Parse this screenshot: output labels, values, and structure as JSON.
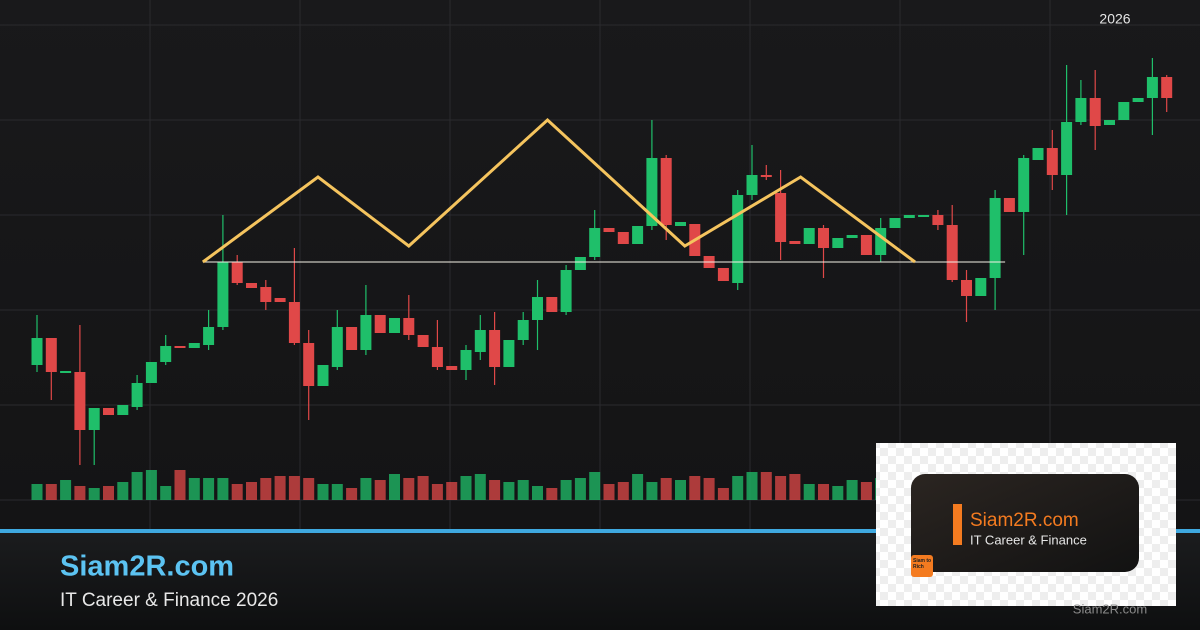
{
  "chart_data": {
    "type": "candlestick",
    "period": "2026",
    "open": [
      155,
      182,
      147,
      148,
      90,
      112,
      105,
      113,
      137,
      158,
      174,
      172,
      175,
      193,
      258,
      237,
      233,
      222,
      218,
      177,
      134,
      153,
      193,
      170,
      205,
      187,
      202,
      185,
      173,
      154,
      150,
      168,
      190,
      153,
      180,
      200,
      223,
      208,
      250,
      263,
      292,
      288,
      276,
      294,
      362,
      294,
      296,
      264,
      252,
      237,
      325,
      345,
      327,
      279,
      276,
      292,
      272,
      282,
      285,
      265,
      292,
      302,
      303,
      305,
      295,
      240,
      224,
      242,
      322,
      308,
      360,
      372,
      345,
      398,
      422,
      395,
      400,
      418,
      422,
      443
    ],
    "high": [
      205,
      182,
      149,
      195,
      112,
      112,
      115,
      145,
      158,
      185,
      174,
      177,
      210,
      305,
      265,
      237,
      240,
      222,
      272,
      190,
      155,
      210,
      193,
      235,
      205,
      202,
      225,
      185,
      200,
      154,
      175,
      205,
      208,
      180,
      208,
      240,
      223,
      255,
      263,
      310,
      292,
      288,
      294,
      400,
      365,
      298,
      296,
      264,
      252,
      330,
      375,
      355,
      350,
      279,
      292,
      295,
      282,
      285,
      285,
      302,
      302,
      305,
      305,
      310,
      315,
      250,
      242,
      330,
      322,
      365,
      372,
      390,
      455,
      440,
      450,
      400,
      418,
      422,
      462,
      445
    ],
    "low": [
      148,
      120,
      147,
      55,
      55,
      105,
      105,
      110,
      137,
      155,
      172,
      172,
      170,
      190,
      235,
      232,
      210,
      218,
      175,
      100,
      134,
      150,
      170,
      165,
      187,
      187,
      180,
      173,
      150,
      150,
      140,
      160,
      135,
      153,
      175,
      170,
      208,
      205,
      250,
      260,
      288,
      276,
      276,
      290,
      280,
      294,
      264,
      252,
      239,
      230,
      320,
      340,
      260,
      276,
      276,
      242,
      272,
      282,
      265,
      258,
      292,
      302,
      303,
      290,
      238,
      198,
      224,
      210,
      308,
      265,
      360,
      330,
      305,
      395,
      370,
      395,
      400,
      418,
      385,
      408
    ],
    "close": [
      182,
      148,
      149,
      90,
      112,
      105,
      115,
      137,
      158,
      174,
      172,
      177,
      193,
      258,
      237,
      232,
      218,
      218,
      177,
      134,
      155,
      193,
      170,
      205,
      187,
      202,
      185,
      173,
      153,
      150,
      170,
      190,
      153,
      180,
      200,
      223,
      208,
      250,
      263,
      292,
      288,
      276,
      294,
      362,
      295,
      298,
      264,
      252,
      239,
      325,
      345,
      343,
      278,
      276,
      292,
      272,
      282,
      285,
      265,
      292,
      302,
      305,
      305,
      295,
      240,
      224,
      242,
      322,
      308,
      362,
      372,
      345,
      398,
      422,
      394,
      400,
      418,
      422,
      443,
      422
    ],
    "volume": [
      16,
      16,
      20,
      14,
      12,
      14,
      18,
      28,
      30,
      14,
      30,
      22,
      22,
      22,
      16,
      18,
      22,
      24,
      24,
      22,
      16,
      16,
      12,
      22,
      20,
      26,
      22,
      24,
      16,
      18,
      24,
      26,
      20,
      18,
      20,
      14,
      12,
      20,
      22,
      28,
      16,
      18,
      26,
      18,
      22,
      20,
      24,
      22,
      12,
      24,
      28,
      28,
      24,
      26,
      16,
      16,
      14,
      20,
      18,
      22,
      20,
      22,
      18,
      24,
      20,
      22,
      18,
      16,
      20,
      24,
      22,
      18,
      20,
      22,
      18,
      16,
      20,
      22,
      18,
      20
    ],
    "ylim": [
      20,
      500
    ],
    "vlim": [
      0,
      100
    ],
    "up_color": "#1fbf6a",
    "down_color": "#e04848",
    "pattern": {
      "x": [
        11.6,
        19.65,
        26.0,
        35.7,
        45.3,
        53.4,
        61.4
      ],
      "y": [
        258,
        343,
        274,
        400,
        274,
        343,
        258
      ],
      "color": "#f5c45e"
    },
    "neckline": {
      "value": 258,
      "x": [
        11.6,
        67.7
      ],
      "color": "#f4f1e6"
    }
  },
  "branding": {
    "title": "Siam2R.com",
    "subtitle": "IT Career & Finance 2026",
    "card_title": "Siam2R.com",
    "card_subtitle": "IT Career & Finance",
    "badge": "Siam to Rich",
    "footer": "Siam2R.com"
  }
}
